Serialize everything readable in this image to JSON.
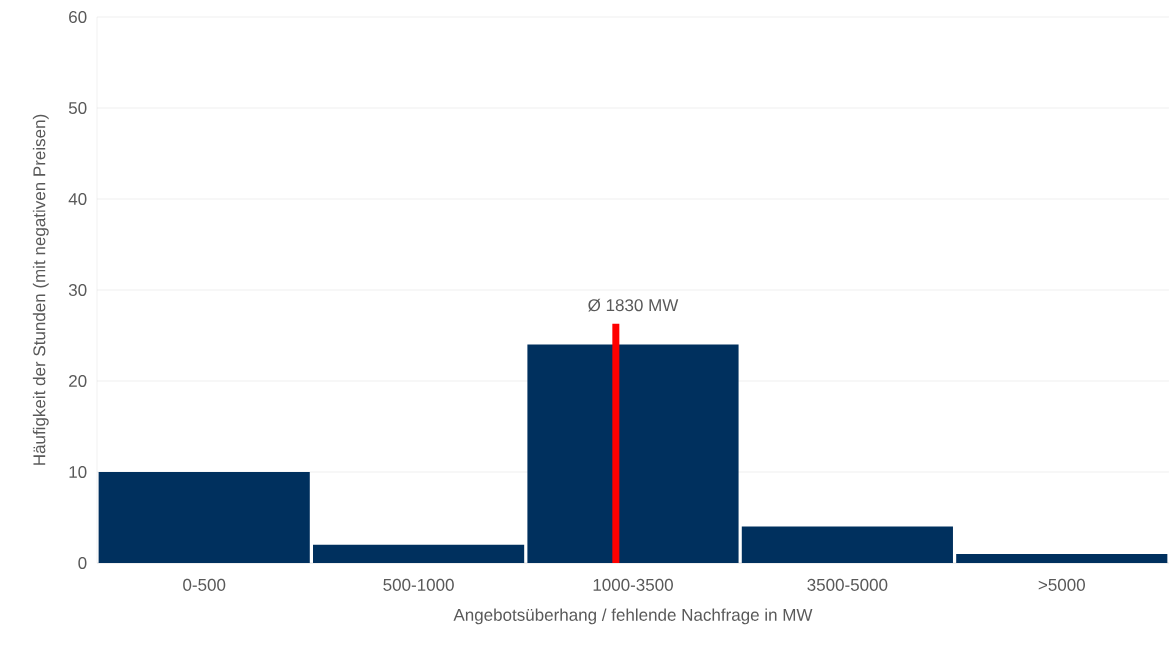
{
  "chart_data": {
    "type": "bar",
    "xlabel": "Angebotsüberhang / fehlende Nachfrage in MW",
    "ylabel": "Häufigkeit der Stunden (mit negativen Preisen)",
    "categories": [
      "0-500",
      "500-1000",
      "1000-3500",
      "3500-5000",
      ">5000"
    ],
    "values": [
      10,
      2,
      24,
      4,
      1
    ],
    "color": "#00305e",
    "ylim": [
      0,
      60
    ],
    "yticks": [
      0,
      10,
      20,
      30,
      40,
      50,
      60
    ],
    "grid": "y",
    "annotations": [
      "Ø 1830 MW"
    ]
  }
}
